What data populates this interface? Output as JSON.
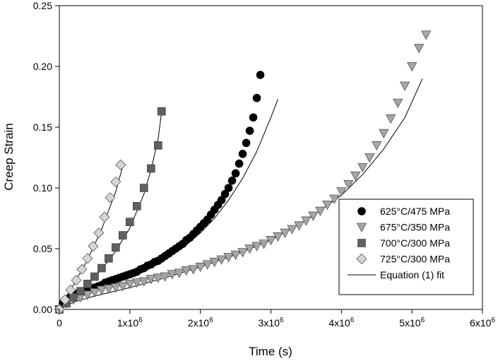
{
  "chart_data": {
    "type": "scatter",
    "xlabel": "Time (s)",
    "ylabel": "Creep Strain",
    "xlim": [
      0,
      6000000
    ],
    "ylim": [
      0,
      0.25
    ],
    "x_ticks": [
      {
        "value": 0,
        "label": "0",
        "exp": ""
      },
      {
        "value": 1000000,
        "label": "1x10",
        "exp": "6"
      },
      {
        "value": 2000000,
        "label": "2x10",
        "exp": "6"
      },
      {
        "value": 3000000,
        "label": "3x10",
        "exp": "6"
      },
      {
        "value": 4000000,
        "label": "4x10",
        "exp": "6"
      },
      {
        "value": 5000000,
        "label": "5x10",
        "exp": "6"
      },
      {
        "value": 6000000,
        "label": "6x10",
        "exp": "6"
      }
    ],
    "y_ticks": [
      {
        "value": 0,
        "label": "0.00"
      },
      {
        "value": 0.05,
        "label": "0.05"
      },
      {
        "value": 0.1,
        "label": "0.10"
      },
      {
        "value": 0.15,
        "label": "0.15"
      },
      {
        "value": 0.2,
        "label": "0.20"
      },
      {
        "value": 0.25,
        "label": "0.25"
      }
    ],
    "legend_position": "bottom-right",
    "series": [
      {
        "name": "625°C/475 MPa",
        "marker": "circle",
        "color": "#000000",
        "points": [
          [
            0,
            0.0
          ],
          [
            50000,
            0.005
          ],
          [
            100000,
            0.008
          ],
          [
            150000,
            0.01
          ],
          [
            200000,
            0.012
          ],
          [
            250000,
            0.013
          ],
          [
            300000,
            0.014
          ],
          [
            350000,
            0.015
          ],
          [
            400000,
            0.016
          ],
          [
            450000,
            0.017
          ],
          [
            500000,
            0.018
          ],
          [
            550000,
            0.019
          ],
          [
            600000,
            0.02
          ],
          [
            650000,
            0.022
          ],
          [
            700000,
            0.023
          ],
          [
            750000,
            0.024
          ],
          [
            800000,
            0.025
          ],
          [
            850000,
            0.026
          ],
          [
            900000,
            0.027
          ],
          [
            950000,
            0.028
          ],
          [
            1000000,
            0.029
          ],
          [
            1050000,
            0.03
          ],
          [
            1100000,
            0.031
          ],
          [
            1150000,
            0.033
          ],
          [
            1200000,
            0.034
          ],
          [
            1250000,
            0.036
          ],
          [
            1300000,
            0.037
          ],
          [
            1350000,
            0.039
          ],
          [
            1400000,
            0.04
          ],
          [
            1450000,
            0.042
          ],
          [
            1500000,
            0.044
          ],
          [
            1550000,
            0.046
          ],
          [
            1600000,
            0.048
          ],
          [
            1650000,
            0.05
          ],
          [
            1700000,
            0.052
          ],
          [
            1750000,
            0.054
          ],
          [
            1800000,
            0.057
          ],
          [
            1850000,
            0.059
          ],
          [
            1900000,
            0.062
          ],
          [
            1950000,
            0.065
          ],
          [
            2000000,
            0.068
          ],
          [
            2050000,
            0.071
          ],
          [
            2100000,
            0.074
          ],
          [
            2150000,
            0.078
          ],
          [
            2200000,
            0.082
          ],
          [
            2250000,
            0.086
          ],
          [
            2300000,
            0.09
          ],
          [
            2350000,
            0.095
          ],
          [
            2400000,
            0.1
          ],
          [
            2450000,
            0.106
          ],
          [
            2500000,
            0.112
          ],
          [
            2550000,
            0.12
          ],
          [
            2600000,
            0.128
          ],
          [
            2650000,
            0.137
          ],
          [
            2700000,
            0.147
          ],
          [
            2750000,
            0.158
          ],
          [
            2800000,
            0.174
          ],
          [
            2850000,
            0.193
          ]
        ],
        "fit": [
          [
            0,
            0.0
          ],
          [
            100000,
            0.007
          ],
          [
            200000,
            0.011
          ],
          [
            400000,
            0.015
          ],
          [
            600000,
            0.019
          ],
          [
            800000,
            0.023
          ],
          [
            1000000,
            0.027
          ],
          [
            1200000,
            0.032
          ],
          [
            1400000,
            0.038
          ],
          [
            1600000,
            0.045
          ],
          [
            1800000,
            0.053
          ],
          [
            2000000,
            0.063
          ],
          [
            2200000,
            0.075
          ],
          [
            2400000,
            0.09
          ],
          [
            2600000,
            0.108
          ],
          [
            2800000,
            0.13
          ],
          [
            3000000,
            0.158
          ],
          [
            3100000,
            0.173
          ]
        ]
      },
      {
        "name": "675°C/350 MPa",
        "marker": "triangle-down",
        "color": "#a6a6a6",
        "points": [
          [
            0,
            0.0
          ],
          [
            100000,
            0.005
          ],
          [
            200000,
            0.008
          ],
          [
            300000,
            0.01
          ],
          [
            400000,
            0.012
          ],
          [
            500000,
            0.014
          ],
          [
            600000,
            0.016
          ],
          [
            700000,
            0.017
          ],
          [
            800000,
            0.018
          ],
          [
            900000,
            0.019
          ],
          [
            1000000,
            0.021
          ],
          [
            1100000,
            0.022
          ],
          [
            1200000,
            0.023
          ],
          [
            1300000,
            0.025
          ],
          [
            1400000,
            0.026
          ],
          [
            1500000,
            0.027
          ],
          [
            1600000,
            0.029
          ],
          [
            1700000,
            0.03
          ],
          [
            1800000,
            0.032
          ],
          [
            1900000,
            0.033
          ],
          [
            2000000,
            0.035
          ],
          [
            2100000,
            0.037
          ],
          [
            2200000,
            0.039
          ],
          [
            2300000,
            0.041
          ],
          [
            2400000,
            0.043
          ],
          [
            2500000,
            0.045
          ],
          [
            2600000,
            0.047
          ],
          [
            2700000,
            0.05
          ],
          [
            2800000,
            0.052
          ],
          [
            2900000,
            0.054
          ],
          [
            3000000,
            0.057
          ],
          [
            3100000,
            0.06
          ],
          [
            3200000,
            0.063
          ],
          [
            3300000,
            0.066
          ],
          [
            3400000,
            0.069
          ],
          [
            3500000,
            0.073
          ],
          [
            3600000,
            0.077
          ],
          [
            3700000,
            0.081
          ],
          [
            3800000,
            0.086
          ],
          [
            3900000,
            0.091
          ],
          [
            4000000,
            0.097
          ],
          [
            4100000,
            0.103
          ],
          [
            4200000,
            0.11
          ],
          [
            4300000,
            0.117
          ],
          [
            4400000,
            0.125
          ],
          [
            4500000,
            0.135
          ],
          [
            4600000,
            0.145
          ],
          [
            4700000,
            0.157
          ],
          [
            4800000,
            0.17
          ],
          [
            4900000,
            0.184
          ],
          [
            5000000,
            0.2
          ],
          [
            5100000,
            0.215
          ],
          [
            5200000,
            0.226
          ]
        ],
        "fit": [
          [
            0,
            0.0
          ],
          [
            200000,
            0.006
          ],
          [
            500000,
            0.011
          ],
          [
            1000000,
            0.018
          ],
          [
            1500000,
            0.026
          ],
          [
            2000000,
            0.035
          ],
          [
            2500000,
            0.045
          ],
          [
            3000000,
            0.057
          ],
          [
            3500000,
            0.073
          ],
          [
            4000000,
            0.094
          ],
          [
            4300000,
            0.111
          ],
          [
            4600000,
            0.132
          ],
          [
            4900000,
            0.158
          ],
          [
            5150000,
            0.19
          ]
        ]
      },
      {
        "name": "700°C/300 MPa",
        "marker": "square",
        "color": "#606060",
        "points": [
          [
            0,
            0.0
          ],
          [
            100000,
            0.005
          ],
          [
            200000,
            0.01
          ],
          [
            300000,
            0.015
          ],
          [
            400000,
            0.021
          ],
          [
            500000,
            0.027
          ],
          [
            600000,
            0.034
          ],
          [
            700000,
            0.042
          ],
          [
            800000,
            0.051
          ],
          [
            900000,
            0.061
          ],
          [
            1000000,
            0.072
          ],
          [
            1100000,
            0.085
          ],
          [
            1200000,
            0.1
          ],
          [
            1300000,
            0.116
          ],
          [
            1400000,
            0.135
          ],
          [
            1450000,
            0.163
          ]
        ],
        "fit": [
          [
            0,
            0.0
          ],
          [
            200000,
            0.01
          ],
          [
            400000,
            0.021
          ],
          [
            600000,
            0.033
          ],
          [
            800000,
            0.048
          ],
          [
            1000000,
            0.067
          ],
          [
            1200000,
            0.095
          ],
          [
            1300000,
            0.115
          ],
          [
            1400000,
            0.14
          ],
          [
            1450000,
            0.162
          ]
        ]
      },
      {
        "name": "725°C/300 MPa",
        "marker": "diamond",
        "color": "#d6d6d6",
        "points": [
          [
            0,
            0.0
          ],
          [
            80000,
            0.008
          ],
          [
            160000,
            0.016
          ],
          [
            240000,
            0.024
          ],
          [
            320000,
            0.033
          ],
          [
            400000,
            0.042
          ],
          [
            480000,
            0.052
          ],
          [
            560000,
            0.063
          ],
          [
            640000,
            0.076
          ],
          [
            720000,
            0.092
          ],
          [
            800000,
            0.105
          ],
          [
            870000,
            0.119
          ]
        ],
        "fit": [
          [
            0,
            0.0
          ],
          [
            200000,
            0.02
          ],
          [
            400000,
            0.041
          ],
          [
            600000,
            0.066
          ],
          [
            800000,
            0.097
          ],
          [
            900000,
            0.118
          ]
        ]
      }
    ],
    "fit_legend_label": "Equation (1) fit"
  }
}
